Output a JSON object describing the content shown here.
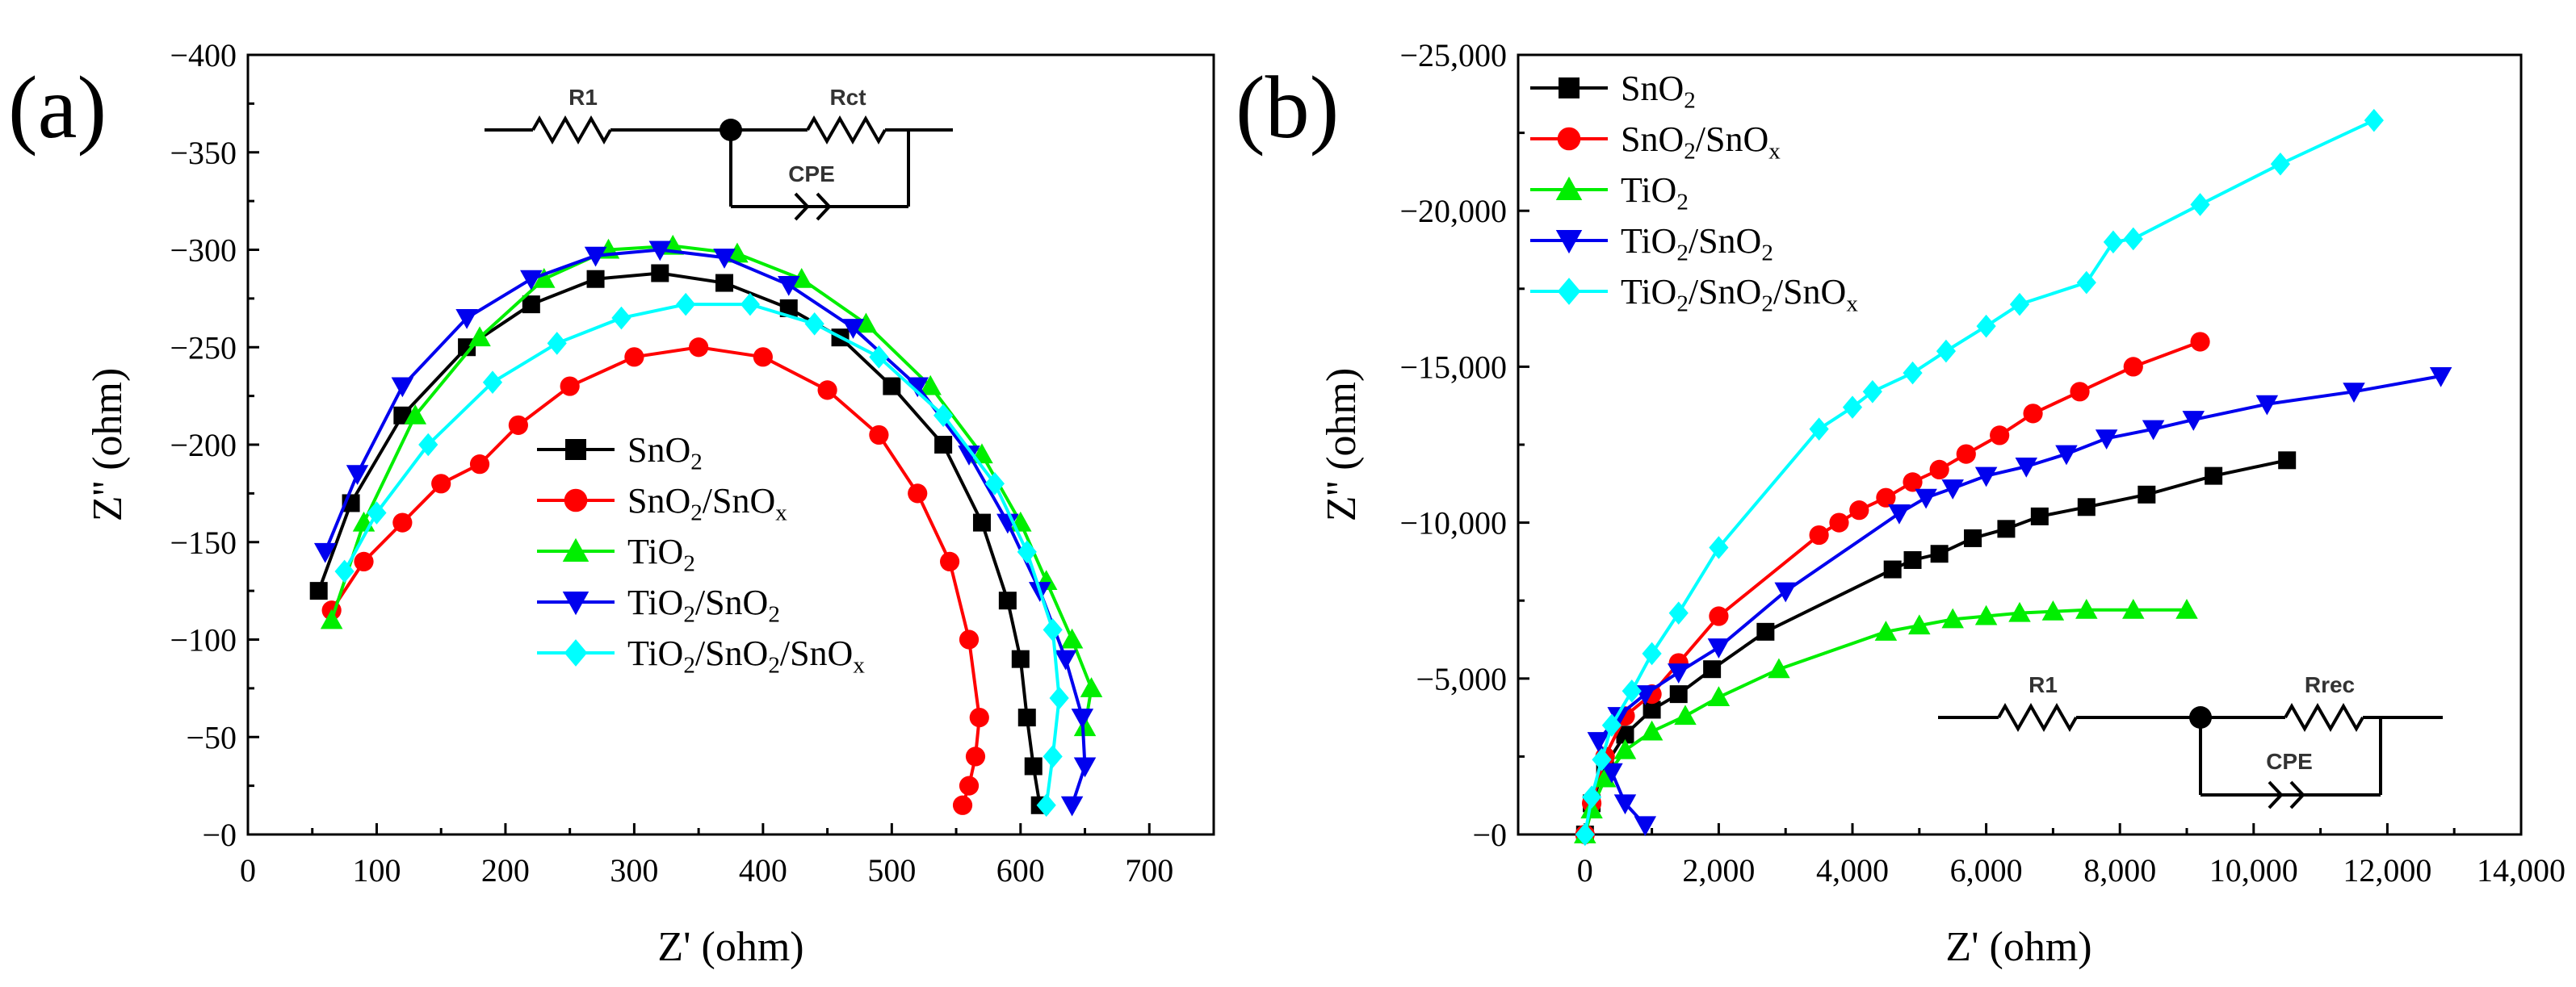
{
  "chart_data": [
    {
      "type": "scatter",
      "panel_label": "(a)",
      "xlabel": "Z' (ohm)",
      "ylabel": "Z'' (ohm)",
      "xlim": [
        0,
        750
      ],
      "ylim": [
        0,
        -400
      ],
      "xticks": [
        0,
        100,
        200,
        300,
        400,
        500,
        600,
        700
      ],
      "xtick_labels": [
        "0",
        "100",
        "200",
        "300",
        "400",
        "500",
        "600",
        "700"
      ],
      "yticks": [
        0,
        -50,
        -100,
        -150,
        -200,
        -250,
        -300,
        -350,
        -400
      ],
      "ytick_labels": [
        "−0",
        "−50",
        "−100",
        "−150",
        "−200",
        "−250",
        "−300",
        "−350",
        "−400"
      ],
      "legend_position": "center",
      "circuit": {
        "labels": [
          "R1",
          "Rct",
          "CPE"
        ]
      },
      "series": [
        {
          "name": "SnO2",
          "legend": {
            "base": "SnO",
            "sub": "2",
            "tail": ""
          },
          "color": "#000000",
          "marker": "square",
          "x": [
            55,
            80,
            120,
            170,
            220,
            270,
            320,
            370,
            420,
            460,
            500,
            540,
            570,
            590,
            600,
            605,
            610,
            615
          ],
          "y": [
            -125,
            -170,
            -215,
            -250,
            -272,
            -285,
            -288,
            -283,
            -270,
            -255,
            -230,
            -200,
            -160,
            -120,
            -90,
            -60,
            -35,
            -15
          ]
        },
        {
          "name": "SnO2/SnOx",
          "legend": {
            "base": "SnO",
            "sub": "2",
            "tail": "/SnO",
            "sub2": "x"
          },
          "color": "#ff0000",
          "marker": "circle",
          "x": [
            65,
            90,
            120,
            150,
            180,
            210,
            250,
            300,
            350,
            400,
            450,
            490,
            520,
            545,
            560,
            568,
            565,
            560,
            555
          ],
          "y": [
            -115,
            -140,
            -160,
            -180,
            -190,
            -210,
            -230,
            -245,
            -250,
            -245,
            -228,
            -205,
            -175,
            -140,
            -100,
            -60,
            -40,
            -25,
            -15
          ]
        },
        {
          "name": "TiO2",
          "legend": {
            "base": "TiO",
            "sub": "2",
            "tail": ""
          },
          "color": "#00ee00",
          "marker": "triangle-up",
          "x": [
            65,
            90,
            130,
            180,
            230,
            280,
            330,
            380,
            430,
            480,
            530,
            570,
            600,
            620,
            640,
            655,
            650
          ],
          "y": [
            -110,
            -160,
            -215,
            -255,
            -285,
            -300,
            -302,
            -298,
            -285,
            -262,
            -230,
            -195,
            -160,
            -130,
            -100,
            -75,
            -55
          ]
        },
        {
          "name": "TiO2/SnO2",
          "legend": {
            "base": "TiO",
            "sub": "2",
            "tail": "/SnO",
            "sub2": "2"
          },
          "color": "#0000ee",
          "marker": "triangle-down",
          "x": [
            60,
            85,
            120,
            170,
            220,
            270,
            320,
            370,
            420,
            470,
            520,
            560,
            590,
            615,
            635,
            648,
            650,
            640
          ],
          "y": [
            -145,
            -185,
            -230,
            -265,
            -285,
            -297,
            -300,
            -296,
            -282,
            -260,
            -230,
            -195,
            -160,
            -125,
            -90,
            -60,
            -35,
            -15
          ]
        },
        {
          "name": "TiO2/SnO2/SnOx",
          "legend": {
            "base": "TiO",
            "sub": "2",
            "tail": "/SnO",
            "sub2": "2",
            "tail2": "/SnO",
            "sub3": "x"
          },
          "color": "#00ffff",
          "marker": "diamond",
          "x": [
            75,
            100,
            140,
            190,
            240,
            290,
            340,
            390,
            440,
            490,
            540,
            580,
            605,
            625,
            630,
            625,
            620
          ],
          "y": [
            -135,
            -165,
            -200,
            -232,
            -252,
            -265,
            -272,
            -272,
            -262,
            -245,
            -215,
            -180,
            -145,
            -105,
            -70,
            -40,
            -15
          ]
        }
      ]
    },
    {
      "type": "line",
      "panel_label": "(b)",
      "xlabel": "Z' (ohm)",
      "ylabel": "Z'' (ohm)",
      "xlim": [
        -1000,
        14000
      ],
      "ylim": [
        0,
        -25000
      ],
      "xticks": [
        0,
        2000,
        4000,
        6000,
        8000,
        10000,
        12000,
        14000
      ],
      "xtick_labels": [
        "0",
        "2,000",
        "4,000",
        "6,000",
        "8,000",
        "10,000",
        "12,000",
        "14,000"
      ],
      "yticks": [
        0,
        -5000,
        -10000,
        -15000,
        -20000,
        -25000
      ],
      "ytick_labels": [
        "−0",
        "−5,000",
        "−10,000",
        "−15,000",
        "−20,000",
        "−25,000"
      ],
      "legend_position": "top-left",
      "circuit": {
        "labels": [
          "R1",
          "Rrec",
          "CPE"
        ]
      },
      "series": [
        {
          "name": "SnO2",
          "legend": {
            "base": "SnO",
            "sub": "2",
            "tail": ""
          },
          "color": "#000000",
          "marker": "square",
          "x": [
            0,
            100,
            300,
            600,
            1000,
            1400,
            1900,
            2700,
            4600,
            4900,
            5300,
            5800,
            6300,
            6800,
            7500,
            8400,
            9400,
            10500
          ],
          "y": [
            0,
            -1000,
            -2200,
            -3200,
            -4000,
            -4500,
            -5300,
            -6500,
            -8500,
            -8800,
            -9000,
            -9500,
            -9800,
            -10200,
            -10500,
            -10900,
            -11500,
            -12000
          ]
        },
        {
          "name": "SnO2/SnOx",
          "legend": {
            "base": "SnO",
            "sub": "2",
            "tail": "/SnO",
            "sub2": "x"
          },
          "color": "#ff0000",
          "marker": "circle",
          "x": [
            0,
            100,
            300,
            600,
            1000,
            1400,
            2000,
            3500,
            3800,
            4100,
            4500,
            4900,
            5300,
            5700,
            6200,
            6700,
            7400,
            8200,
            9200
          ],
          "y": [
            0,
            -1000,
            -2500,
            -3800,
            -4500,
            -5500,
            -7000,
            -9600,
            -10000,
            -10400,
            -10800,
            -11300,
            -11700,
            -12200,
            -12800,
            -13500,
            -14200,
            -15000,
            -15800
          ]
        },
        {
          "name": "TiO2",
          "legend": {
            "base": "TiO",
            "sub": "2",
            "tail": ""
          },
          "color": "#00ee00",
          "marker": "triangle-up",
          "x": [
            0,
            100,
            300,
            600,
            1000,
            1500,
            2000,
            2900,
            4500,
            5000,
            5500,
            6000,
            6500,
            7000,
            7500,
            8200,
            9000
          ],
          "y": [
            0,
            -800,
            -1800,
            -2700,
            -3300,
            -3800,
            -4400,
            -5300,
            -6500,
            -6700,
            -6900,
            -7000,
            -7100,
            -7150,
            -7200,
            -7200,
            -7200
          ]
        },
        {
          "name": "TiO2/SnO2",
          "legend": {
            "base": "TiO",
            "sub": "2",
            "tail": "/SnO",
            "sub2": "2"
          },
          "color": "#0000ee",
          "marker": "triangle-down",
          "x": [
            900,
            600,
            400,
            200,
            500,
            900,
            1400,
            2000,
            3000,
            4700,
            5100,
            5500,
            6000,
            6600,
            7200,
            7800,
            8500,
            9100,
            10200,
            11500,
            12800
          ],
          "y": [
            -300,
            -1000,
            -2000,
            -3000,
            -3800,
            -4500,
            -5200,
            -6000,
            -7800,
            -10300,
            -10800,
            -11100,
            -11500,
            -11800,
            -12200,
            -12700,
            -13000,
            -13300,
            -13800,
            -14200,
            -14700
          ]
        },
        {
          "name": "TiO2/SnO2/SnOx",
          "legend": {
            "base": "TiO",
            "sub": "2",
            "tail": "/SnO",
            "sub2": "2",
            "tail2": "/SnO",
            "sub3": "x"
          },
          "color": "#00ffff",
          "marker": "diamond",
          "x": [
            0,
            100,
            250,
            400,
            700,
            1000,
            1400,
            2000,
            3500,
            4000,
            4300,
            4900,
            5400,
            6000,
            6500,
            7500,
            7900,
            8200,
            9200,
            10400,
            11800
          ],
          "y": [
            0,
            -1200,
            -2400,
            -3500,
            -4600,
            -5800,
            -7100,
            -9200,
            -13000,
            -13700,
            -14200,
            -14800,
            -15500,
            -16300,
            -17000,
            -17700,
            -19000,
            -19100,
            -20200,
            -21500,
            -22900
          ]
        }
      ]
    }
  ]
}
